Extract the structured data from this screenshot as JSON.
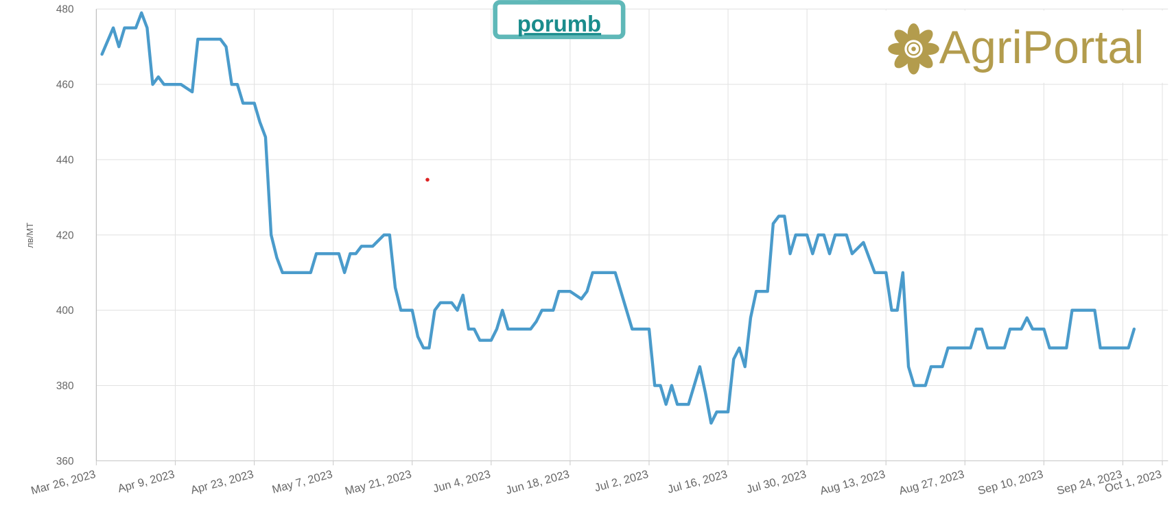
{
  "chart_data": {
    "type": "line",
    "title": "porumb",
    "brand": "AgriPortal",
    "y_label": "лв/MT",
    "x": [
      "2023-03-27",
      "2023-03-29",
      "2023-03-30",
      "2023-03-31",
      "2023-04-02",
      "2023-04-03",
      "2023-04-04",
      "2023-04-05",
      "2023-04-06",
      "2023-04-07",
      "2023-04-10",
      "2023-04-12",
      "2023-04-13",
      "2023-04-17",
      "2023-04-18",
      "2023-04-19",
      "2023-04-20",
      "2023-04-21",
      "2023-04-23",
      "2023-04-24",
      "2023-04-25",
      "2023-04-26",
      "2023-04-27",
      "2023-04-28",
      "2023-05-03",
      "2023-05-04",
      "2023-05-08",
      "2023-05-09",
      "2023-05-10",
      "2023-05-11",
      "2023-05-12",
      "2023-05-14",
      "2023-05-16",
      "2023-05-17",
      "2023-05-18",
      "2023-05-19",
      "2023-05-21",
      "2023-05-22",
      "2023-05-23",
      "2023-05-24",
      "2023-05-25",
      "2023-05-26",
      "2023-05-28",
      "2023-05-29",
      "2023-05-30",
      "2023-05-31",
      "2023-06-01",
      "2023-06-02",
      "2023-06-04",
      "2023-06-05",
      "2023-06-06",
      "2023-06-07",
      "2023-06-11",
      "2023-06-12",
      "2023-06-13",
      "2023-06-15",
      "2023-06-16",
      "2023-06-18",
      "2023-06-20",
      "2023-06-21",
      "2023-06-22",
      "2023-06-26",
      "2023-06-27",
      "2023-06-29",
      "2023-07-02",
      "2023-07-03",
      "2023-07-04",
      "2023-07-05",
      "2023-07-06",
      "2023-07-07",
      "2023-07-09",
      "2023-07-11",
      "2023-07-12",
      "2023-07-13",
      "2023-07-14",
      "2023-07-16",
      "2023-07-17",
      "2023-07-18",
      "2023-07-19",
      "2023-07-20",
      "2023-07-21",
      "2023-07-23",
      "2023-07-24",
      "2023-07-25",
      "2023-07-26",
      "2023-07-27",
      "2023-07-28",
      "2023-07-30",
      "2023-07-31",
      "2023-08-01",
      "2023-08-02",
      "2023-08-03",
      "2023-08-04",
      "2023-08-06",
      "2023-08-07",
      "2023-08-09",
      "2023-08-10",
      "2023-08-11",
      "2023-08-13",
      "2023-08-14",
      "2023-08-15",
      "2023-08-16",
      "2023-08-17",
      "2023-08-18",
      "2023-08-20",
      "2023-08-21",
      "2023-08-23",
      "2023-08-24",
      "2023-08-28",
      "2023-08-29",
      "2023-08-30",
      "2023-08-31",
      "2023-09-03",
      "2023-09-04",
      "2023-09-06",
      "2023-09-07",
      "2023-09-08",
      "2023-09-10",
      "2023-09-11",
      "2023-09-14",
      "2023-09-15",
      "2023-09-19",
      "2023-09-20",
      "2023-09-25",
      "2023-09-26"
    ],
    "series": [
      {
        "name": "porumb",
        "color": "#4a9bcb",
        "values": [
          468,
          475,
          470,
          475,
          475,
          479,
          475,
          460,
          462,
          460,
          460,
          458,
          472,
          472,
          470,
          460,
          460,
          455,
          455,
          450,
          446,
          420,
          414,
          410,
          410,
          415,
          415,
          410,
          415,
          415,
          417,
          417,
          420,
          420,
          406,
          400,
          400,
          393,
          390,
          390,
          400,
          402,
          402,
          400,
          404,
          395,
          395,
          392,
          392,
          395,
          400,
          395,
          395,
          397,
          400,
          400,
          405,
          405,
          403,
          405,
          410,
          410,
          405,
          395,
          395,
          380,
          380,
          375,
          380,
          375,
          375,
          385,
          378,
          370,
          373,
          373,
          387,
          390,
          385,
          398,
          405,
          405,
          423,
          425,
          425,
          415,
          420,
          420,
          415,
          420,
          420,
          415,
          420,
          420,
          415,
          418,
          414,
          410,
          410,
          400,
          400,
          410,
          385,
          380,
          380,
          385,
          385,
          390,
          390,
          395,
          395,
          390,
          390,
          395,
          395,
          398,
          395,
          395,
          390,
          390,
          400,
          400,
          390,
          390,
          395
        ]
      }
    ],
    "xlim": [
      "2023-03-26",
      "2023-10-02"
    ],
    "xticks": [
      {
        "value": "2023-03-26",
        "label": "Mar 26, 2023"
      },
      {
        "value": "2023-04-09",
        "label": "Apr 9, 2023"
      },
      {
        "value": "2023-04-23",
        "label": "Apr 23, 2023"
      },
      {
        "value": "2023-05-07",
        "label": "May 7, 2023"
      },
      {
        "value": "2023-05-21",
        "label": "May 21, 2023"
      },
      {
        "value": "2023-06-04",
        "label": "Jun 4, 2023"
      },
      {
        "value": "2023-06-18",
        "label": "Jun 18, 2023"
      },
      {
        "value": "2023-07-02",
        "label": "Jul 2, 2023"
      },
      {
        "value": "2023-07-16",
        "label": "Jul 16, 2023"
      },
      {
        "value": "2023-07-30",
        "label": "Jul 30, 2023"
      },
      {
        "value": "2023-08-13",
        "label": "Aug 13, 2023"
      },
      {
        "value": "2023-08-27",
        "label": "Aug 27, 2023"
      },
      {
        "value": "2023-09-10",
        "label": "Sep 10, 2023"
      },
      {
        "value": "2023-09-24",
        "label": "Sep 24, 2023"
      },
      {
        "value": "2023-10-01",
        "label": "Oct 1, 2023"
      }
    ],
    "ylim": [
      360,
      480
    ],
    "yticks": [
      360,
      380,
      400,
      420,
      440,
      460,
      480
    ],
    "grid": true
  }
}
